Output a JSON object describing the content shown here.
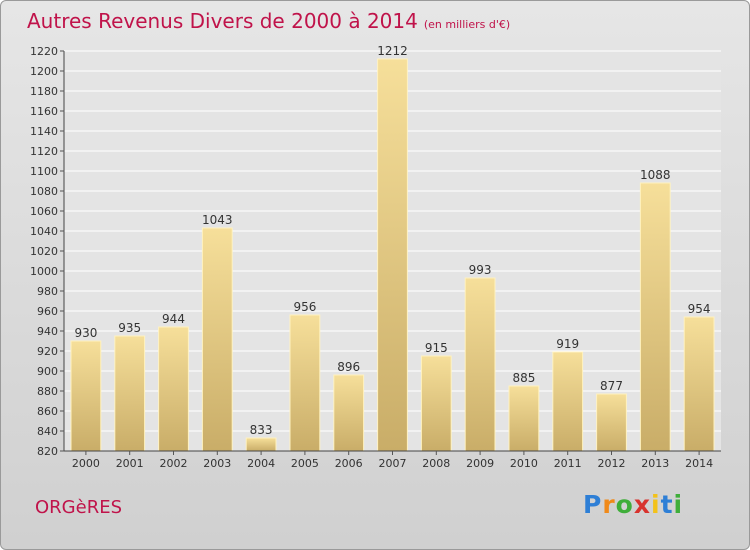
{
  "title": {
    "main": "Autres Revenus Divers de 2000 à 2014",
    "sub": "(en milliers d'€)"
  },
  "footer": {
    "commune": "ORGèRES",
    "logo_letters": [
      "P",
      "r",
      "o",
      "x",
      "i",
      "t",
      "i"
    ],
    "logo_colors": [
      "#2e7fd6",
      "#f08a1a",
      "#3fae3a",
      "#d8332e",
      "#f3c21a",
      "#2e7fd6",
      "#3fae3a"
    ]
  },
  "chart_data": {
    "type": "bar",
    "title": "Autres Revenus Divers de 2000 à 2014",
    "subtitle": "(en milliers d'€)",
    "xlabel": "",
    "ylabel": "",
    "categories": [
      "2000",
      "2001",
      "2002",
      "2003",
      "2004",
      "2005",
      "2006",
      "2007",
      "2008",
      "2009",
      "2010",
      "2011",
      "2012",
      "2013",
      "2014"
    ],
    "values": [
      930,
      935,
      944,
      1043,
      833,
      956,
      896,
      1212,
      915,
      993,
      885,
      919,
      877,
      1088,
      954
    ],
    "ylim": [
      820,
      1220
    ],
    "yticks": [
      820,
      840,
      860,
      880,
      900,
      920,
      940,
      960,
      980,
      1000,
      1020,
      1040,
      1060,
      1080,
      1100,
      1120,
      1140,
      1160,
      1180,
      1200,
      1220
    ],
    "grid": true,
    "bar_color": "#e8cf86"
  }
}
